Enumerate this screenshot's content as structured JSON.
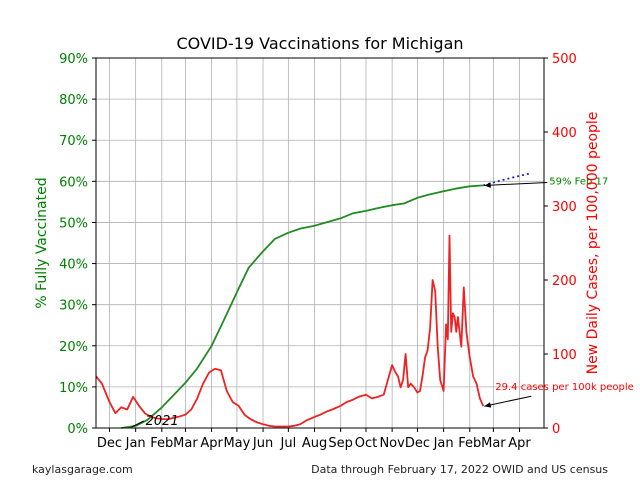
{
  "chart_data": {
    "type": "line",
    "title": "COVID-19 Vaccinations for Michigan",
    "y_left_label": "% Fully Vaccinated",
    "y_right_label": "New Daily Cases, per 100,000 people",
    "y_left_ticks": [
      "0%",
      "10%",
      "20%",
      "30%",
      "40%",
      "50%",
      "60%",
      "70%",
      "80%",
      "90%"
    ],
    "y_right_ticks": [
      "0",
      "100",
      "200",
      "300",
      "400",
      "500"
    ],
    "ylim_left": [
      0,
      90
    ],
    "ylim_right": [
      0,
      500
    ],
    "x_tick_labels": [
      "Dec",
      "Jan",
      "Feb",
      "Mar",
      "Apr",
      "May",
      "Jun",
      "Jul",
      "Aug",
      "Sep",
      "Oct",
      "Nov",
      "Dec",
      "Jan",
      "Feb",
      "Mar",
      "Apr"
    ],
    "year_label": "2021",
    "grid": true,
    "colors": {
      "vaccinated": "#228b22",
      "projection": "#1f1fcc",
      "cases": "#ee2222",
      "left_axis": "#008000",
      "right_axis": "#ff0000"
    },
    "series": [
      {
        "key": "vaccinated",
        "x": [
          "2020-12-15",
          "2021-01-01",
          "2021-01-15",
          "2021-02-01",
          "2021-02-15",
          "2021-03-01",
          "2021-03-15",
          "2021-04-01",
          "2021-04-15",
          "2021-05-01",
          "2021-05-15",
          "2021-06-01",
          "2021-06-15",
          "2021-07-01",
          "2021-07-15",
          "2021-08-01",
          "2021-08-15",
          "2021-09-01",
          "2021-09-15",
          "2021-10-01",
          "2021-10-15",
          "2021-11-01",
          "2021-11-15",
          "2021-12-01",
          "2021-12-15",
          "2022-01-01",
          "2022-01-15",
          "2022-02-01",
          "2022-02-17"
        ],
        "values": [
          0,
          0.5,
          2,
          5,
          8,
          11,
          14.5,
          20,
          26,
          33,
          39,
          43,
          46,
          47.5,
          48.5,
          49.2,
          50,
          51,
          52.2,
          52.8,
          53.5,
          54.2,
          54.6,
          56,
          56.8,
          57.6,
          58.2,
          58.8,
          59
        ]
      },
      {
        "key": "projection",
        "x": [
          "2022-02-17",
          "2022-03-15",
          "2022-04-15"
        ],
        "values": [
          59,
          60.5,
          62
        ]
      },
      {
        "key": "cases",
        "x": [
          "2020-11-15",
          "2020-11-22",
          "2020-12-01",
          "2020-12-08",
          "2020-12-15",
          "2020-12-22",
          "2020-12-29",
          "2021-01-05",
          "2021-01-12",
          "2021-01-19",
          "2021-01-26",
          "2021-02-02",
          "2021-02-09",
          "2021-02-16",
          "2021-02-23",
          "2021-03-01",
          "2021-03-08",
          "2021-03-15",
          "2021-03-22",
          "2021-03-29",
          "2021-04-05",
          "2021-04-12",
          "2021-04-19",
          "2021-04-26",
          "2021-05-03",
          "2021-05-10",
          "2021-05-17",
          "2021-05-24",
          "2021-06-01",
          "2021-06-08",
          "2021-06-15",
          "2021-06-22",
          "2021-07-01",
          "2021-07-08",
          "2021-07-15",
          "2021-07-22",
          "2021-08-01",
          "2021-08-08",
          "2021-08-15",
          "2021-08-22",
          "2021-09-01",
          "2021-09-08",
          "2021-09-15",
          "2021-09-22",
          "2021-10-01",
          "2021-10-08",
          "2021-10-15",
          "2021-10-22",
          "2021-11-01",
          "2021-11-05",
          "2021-11-08",
          "2021-11-11",
          "2021-11-14",
          "2021-11-17",
          "2021-11-20",
          "2021-11-23",
          "2021-11-27",
          "2021-12-01",
          "2021-12-04",
          "2021-12-07",
          "2021-12-10",
          "2021-12-13",
          "2021-12-16",
          "2021-12-19",
          "2021-12-22",
          "2021-12-25",
          "2021-12-28",
          "2022-01-01",
          "2022-01-04",
          "2022-01-06",
          "2022-01-08",
          "2022-01-10",
          "2022-01-12",
          "2022-01-14",
          "2022-01-16",
          "2022-01-18",
          "2022-01-20",
          "2022-01-22",
          "2022-01-25",
          "2022-01-28",
          "2022-02-01",
          "2022-02-05",
          "2022-02-09",
          "2022-02-13",
          "2022-02-17"
        ],
        "values": [
          70,
          60,
          35,
          20,
          28,
          25,
          42,
          30,
          20,
          15,
          13,
          12,
          12,
          14,
          16,
          18,
          25,
          40,
          60,
          75,
          80,
          78,
          50,
          35,
          30,
          18,
          12,
          8,
          5,
          3,
          2,
          2,
          2,
          3,
          5,
          10,
          15,
          18,
          22,
          25,
          30,
          35,
          38,
          42,
          45,
          40,
          42,
          45,
          85,
          75,
          70,
          55,
          65,
          100,
          55,
          60,
          55,
          48,
          50,
          70,
          95,
          105,
          135,
          200,
          185,
          110,
          65,
          50,
          140,
          120,
          260,
          130,
          155,
          150,
          130,
          150,
          130,
          110,
          190,
          130,
          95,
          70,
          60,
          40,
          29.4
        ]
      }
    ],
    "annotations": [
      {
        "text": "59% Feb 17",
        "color": "#008000",
        "at": {
          "x": "2022-02-17",
          "y": 59
        }
      },
      {
        "text": "29.4 cases per 100k people",
        "color": "#ff0000",
        "at": {
          "x": "2022-02-17",
          "y": 29.4
        }
      }
    ]
  },
  "footer": {
    "left": "kaylasgarage.com",
    "right": "Data through February 17, 2022 OWID and US census"
  }
}
